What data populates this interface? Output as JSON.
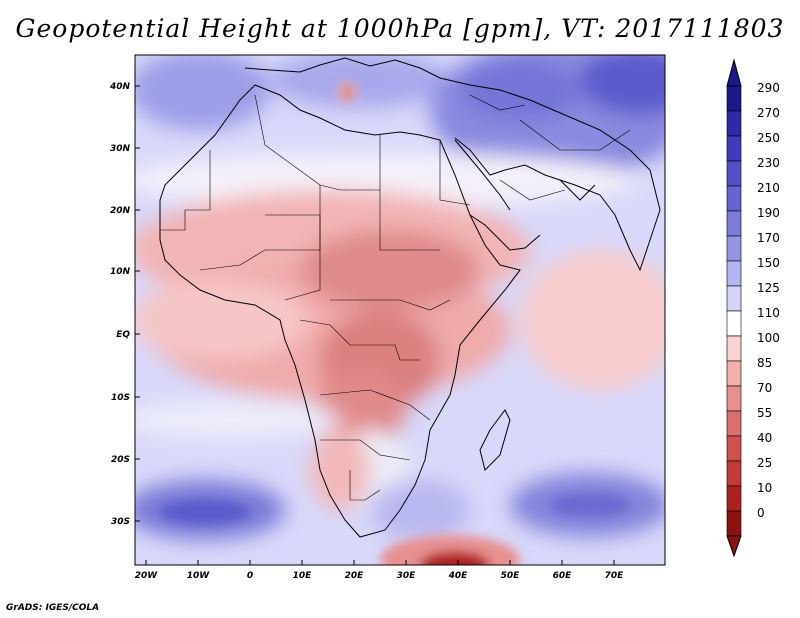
{
  "title": "Geopotential Height at 1000hPa [gpm], VT: 2017111803",
  "credit": "GrADS: IGES/COLA",
  "map": {
    "lat_labels": [
      "40N",
      "30N",
      "20N",
      "10N",
      "EQ",
      "10S",
      "20S",
      "30S"
    ],
    "lon_labels": [
      "20W",
      "10W",
      "0",
      "10E",
      "20E",
      "30E",
      "40E",
      "50E",
      "60E",
      "70E"
    ]
  },
  "colorbar": {
    "levels": [
      "290",
      "270",
      "250",
      "230",
      "210",
      "190",
      "170",
      "150",
      "125",
      "110",
      "100",
      "85",
      "70",
      "55",
      "40",
      "25",
      "10",
      "0"
    ],
    "colors": [
      "#1a1a8c",
      "#2a2aa8",
      "#3c3cbc",
      "#5050c8",
      "#6464d2",
      "#7b7bdc",
      "#9595e6",
      "#b4b4f0",
      "#d4d4f8",
      "#ffffff",
      "#fad4d4",
      "#f2b0b0",
      "#e89090",
      "#dc7070",
      "#d05050",
      "#c43838",
      "#b02020",
      "#8c1010"
    ]
  },
  "colors": {
    "high": "#3c3cbc",
    "low": "#b02020",
    "neutral": "#ffffff"
  }
}
